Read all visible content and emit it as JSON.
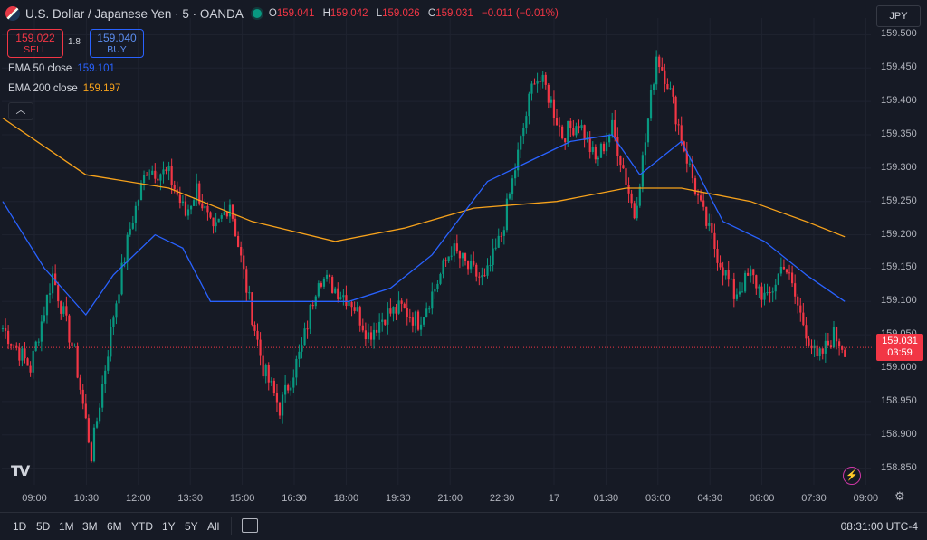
{
  "header": {
    "symbol": "U.S. Dollar / Japanese Yen · 5 · OANDA",
    "o_label": "O",
    "o": "159.041",
    "h_label": "H",
    "h": "159.042",
    "l_label": "L",
    "l": "159.026",
    "c_label": "C",
    "c": "159.031",
    "change": "−0.011 (−0.01%)"
  },
  "trade": {
    "sell_price": "159.022",
    "sell_label": "SELL",
    "spread": "1.8",
    "buy_price": "159.040",
    "buy_label": "BUY"
  },
  "indicators": [
    {
      "label": "EMA 50 close",
      "value": "159.101",
      "color": "#2962ff"
    },
    {
      "label": "EMA 200 close",
      "value": "159.197",
      "color": "#f7a21b"
    }
  ],
  "currency": "JPY",
  "last_price": {
    "value": "159.031",
    "countdown": "03:59"
  },
  "bottom": {
    "ranges": [
      "1D",
      "5D",
      "1M",
      "3M",
      "6M",
      "YTD",
      "1Y",
      "5Y",
      "All"
    ],
    "clock": "08:31:00 UTC-4"
  },
  "chart_data": {
    "type": "candlestick",
    "ylim": [
      158.825,
      159.525
    ],
    "yticks": [
      "159.500",
      "159.450",
      "159.400",
      "159.350",
      "159.300",
      "159.250",
      "159.200",
      "159.150",
      "159.100",
      "159.050",
      "159.000",
      "158.950",
      "158.900",
      "158.850"
    ],
    "xticks": [
      "09:00",
      "10:30",
      "12:00",
      "13:30",
      "15:00",
      "16:30",
      "18:00",
      "19:30",
      "21:00",
      "22:30",
      "17",
      "01:30",
      "03:00",
      "04:30",
      "06:00",
      "07:30",
      "09:00"
    ],
    "up_color": "#089981",
    "down_color": "#f23645",
    "anchors": [
      [
        0,
        159.06
      ],
      [
        10,
        159.0
      ],
      [
        18,
        159.14
      ],
      [
        26,
        159.02
      ],
      [
        32,
        158.87
      ],
      [
        40,
        159.08
      ],
      [
        46,
        159.21
      ],
      [
        52,
        159.3
      ],
      [
        60,
        159.29
      ],
      [
        66,
        159.23
      ],
      [
        70,
        159.27
      ],
      [
        76,
        159.2
      ],
      [
        82,
        159.25
      ],
      [
        88,
        159.12
      ],
      [
        94,
        159.0
      ],
      [
        100,
        158.94
      ],
      [
        108,
        159.03
      ],
      [
        114,
        159.14
      ],
      [
        120,
        159.12
      ],
      [
        126,
        159.1
      ],
      [
        132,
        159.05
      ],
      [
        138,
        159.08
      ],
      [
        144,
        159.09
      ],
      [
        150,
        159.07
      ],
      [
        156,
        159.12
      ],
      [
        162,
        159.18
      ],
      [
        168,
        159.15
      ],
      [
        174,
        159.13
      ],
      [
        180,
        159.2
      ],
      [
        186,
        159.32
      ],
      [
        192,
        159.44
      ],
      [
        196,
        159.42
      ],
      [
        202,
        159.35
      ],
      [
        208,
        159.37
      ],
      [
        214,
        159.31
      ],
      [
        220,
        159.36
      ],
      [
        224,
        159.3
      ],
      [
        228,
        159.23
      ],
      [
        232,
        159.34
      ],
      [
        236,
        159.47
      ],
      [
        240,
        159.43
      ],
      [
        246,
        159.33
      ],
      [
        252,
        159.24
      ],
      [
        258,
        159.17
      ],
      [
        264,
        159.11
      ],
      [
        270,
        159.14
      ],
      [
        276,
        159.1
      ],
      [
        282,
        159.16
      ],
      [
        288,
        159.08
      ],
      [
        294,
        159.01
      ],
      [
        300,
        159.05
      ],
      [
        304,
        159.03
      ]
    ],
    "ema50": [
      [
        0,
        159.25
      ],
      [
        15,
        159.15
      ],
      [
        30,
        159.08
      ],
      [
        40,
        159.14
      ],
      [
        55,
        159.2
      ],
      [
        65,
        159.18
      ],
      [
        75,
        159.1
      ],
      [
        90,
        159.1
      ],
      [
        110,
        159.1
      ],
      [
        125,
        159.1
      ],
      [
        140,
        159.12
      ],
      [
        155,
        159.17
      ],
      [
        175,
        159.28
      ],
      [
        190,
        159.31
      ],
      [
        205,
        159.34
      ],
      [
        220,
        159.35
      ],
      [
        230,
        159.29
      ],
      [
        245,
        159.34
      ],
      [
        260,
        159.22
      ],
      [
        275,
        159.19
      ],
      [
        290,
        159.14
      ],
      [
        304,
        159.1
      ]
    ],
    "ema200": [
      [
        0,
        159.375
      ],
      [
        30,
        159.29
      ],
      [
        60,
        159.27
      ],
      [
        90,
        159.22
      ],
      [
        120,
        159.19
      ],
      [
        145,
        159.21
      ],
      [
        170,
        159.24
      ],
      [
        200,
        159.25
      ],
      [
        225,
        159.27
      ],
      [
        245,
        159.27
      ],
      [
        270,
        159.25
      ],
      [
        290,
        159.22
      ],
      [
        304,
        159.197
      ]
    ]
  }
}
